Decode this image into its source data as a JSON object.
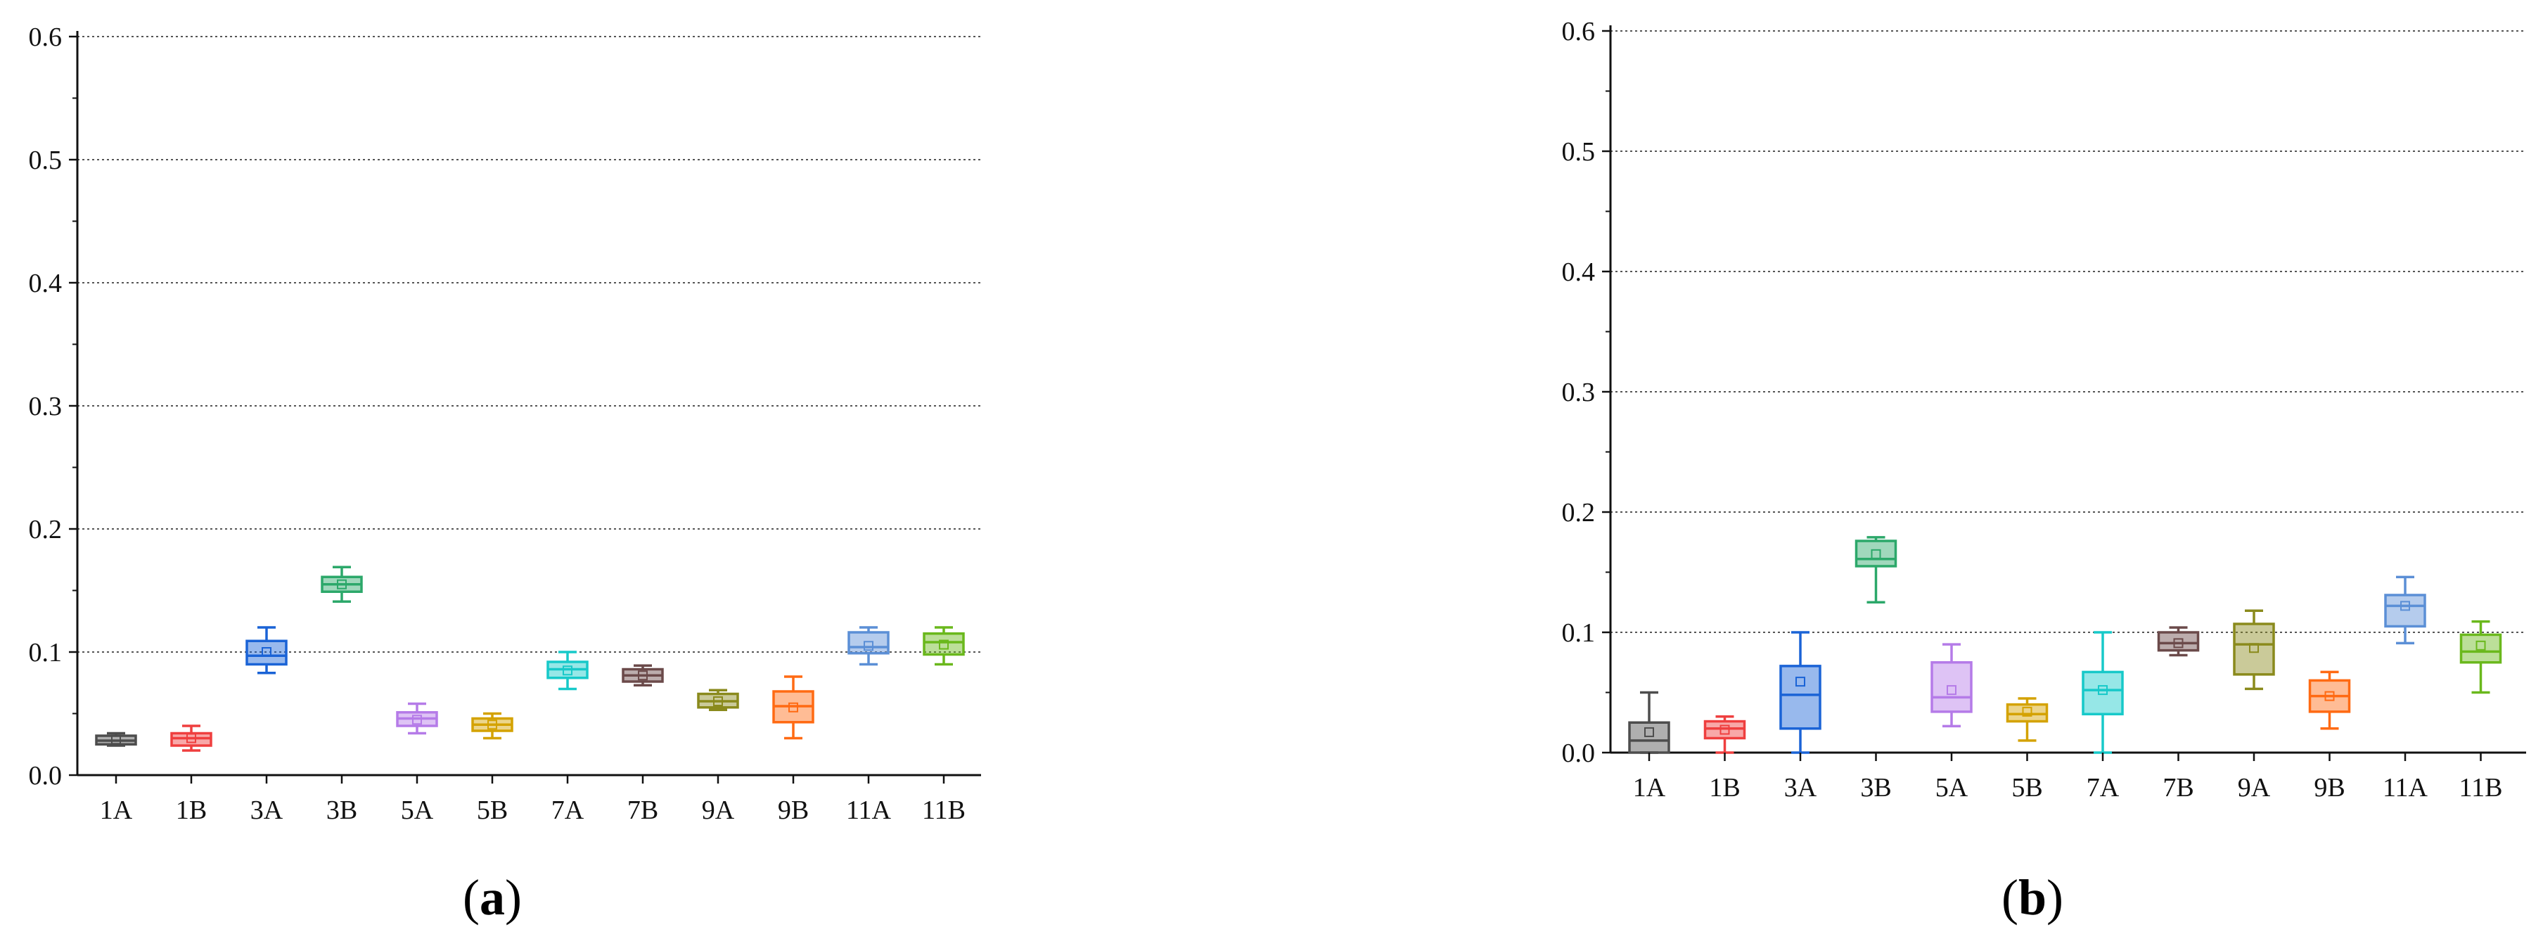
{
  "chart_data": [
    {
      "type": "box",
      "panel_label": "(a)",
      "panel_letter": "a",
      "categories": [
        "1A",
        "1B",
        "3A",
        "3B",
        "5A",
        "5B",
        "7A",
        "7B",
        "9A",
        "9B",
        "11A",
        "11B"
      ],
      "yticks": [
        "0.0",
        "0.1",
        "0.2",
        "0.3",
        "0.4",
        "0.5",
        "0.6"
      ],
      "ylim": [
        0,
        0.6
      ],
      "grid": "horizontal dotted",
      "series": [
        {
          "category": "1A",
          "min": 0.024,
          "q1": 0.025,
          "median": 0.028,
          "q3": 0.032,
          "max": 0.034,
          "mean": 0.029,
          "color": "#4d4d4d"
        },
        {
          "category": "1B",
          "min": 0.02,
          "q1": 0.024,
          "median": 0.03,
          "q3": 0.034,
          "max": 0.04,
          "mean": 0.03,
          "color": "#ef3f3f"
        },
        {
          "category": "3A",
          "min": 0.083,
          "q1": 0.09,
          "median": 0.097,
          "q3": 0.109,
          "max": 0.12,
          "mean": 0.1,
          "color": "#1a63d6"
        },
        {
          "category": "3B",
          "min": 0.141,
          "q1": 0.149,
          "median": 0.155,
          "q3": 0.161,
          "max": 0.169,
          "mean": 0.155,
          "color": "#2ca86a"
        },
        {
          "category": "5A",
          "min": 0.034,
          "q1": 0.04,
          "median": 0.046,
          "q3": 0.051,
          "max": 0.058,
          "mean": 0.045,
          "color": "#b57be8"
        },
        {
          "category": "5B",
          "min": 0.03,
          "q1": 0.036,
          "median": 0.041,
          "q3": 0.046,
          "max": 0.05,
          "mean": 0.041,
          "color": "#d4a200"
        },
        {
          "category": "7A",
          "min": 0.07,
          "q1": 0.079,
          "median": 0.086,
          "q3": 0.092,
          "max": 0.1,
          "mean": 0.085,
          "color": "#17c9c9"
        },
        {
          "category": "7B",
          "min": 0.073,
          "q1": 0.076,
          "median": 0.081,
          "q3": 0.086,
          "max": 0.089,
          "mean": 0.081,
          "color": "#6b4a4a"
        },
        {
          "category": "9A",
          "min": 0.053,
          "q1": 0.055,
          "median": 0.06,
          "q3": 0.066,
          "max": 0.069,
          "mean": 0.06,
          "color": "#8a8a1c"
        },
        {
          "category": "9B",
          "min": 0.03,
          "q1": 0.043,
          "median": 0.056,
          "q3": 0.068,
          "max": 0.08,
          "mean": 0.055,
          "color": "#ff6a13"
        },
        {
          "category": "11A",
          "min": 0.09,
          "q1": 0.099,
          "median": 0.104,
          "q3": 0.116,
          "max": 0.12,
          "mean": 0.105,
          "color": "#5b8fd6"
        },
        {
          "category": "11B",
          "min": 0.09,
          "q1": 0.098,
          "median": 0.108,
          "q3": 0.115,
          "max": 0.12,
          "mean": 0.106,
          "color": "#6ab81c"
        }
      ]
    },
    {
      "type": "box",
      "panel_label": "(b)",
      "panel_letter": "b",
      "categories": [
        "1A",
        "1B",
        "3A",
        "3B",
        "5A",
        "5B",
        "7A",
        "7B",
        "9A",
        "9B",
        "11A",
        "11B"
      ],
      "yticks": [
        "0.0",
        "0.1",
        "0.2",
        "0.3",
        "0.4",
        "0.5",
        "0.6"
      ],
      "ylim": [
        0,
        0.6
      ],
      "grid": "horizontal dotted",
      "series": [
        {
          "category": "1A",
          "min": 0.0,
          "q1": 0.0,
          "median": 0.01,
          "q3": 0.025,
          "max": 0.05,
          "mean": 0.017,
          "color": "#4d4d4d"
        },
        {
          "category": "1B",
          "min": 0.0,
          "q1": 0.012,
          "median": 0.02,
          "q3": 0.026,
          "max": 0.03,
          "mean": 0.019,
          "color": "#ef3f3f"
        },
        {
          "category": "3A",
          "min": 0.0,
          "q1": 0.02,
          "median": 0.048,
          "q3": 0.072,
          "max": 0.1,
          "mean": 0.059,
          "color": "#1a63d6"
        },
        {
          "category": "3B",
          "min": 0.125,
          "q1": 0.155,
          "median": 0.161,
          "q3": 0.176,
          "max": 0.179,
          "mean": 0.165,
          "color": "#2ca86a"
        },
        {
          "category": "5A",
          "min": 0.022,
          "q1": 0.034,
          "median": 0.046,
          "q3": 0.075,
          "max": 0.09,
          "mean": 0.052,
          "color": "#b57be8"
        },
        {
          "category": "5B",
          "min": 0.01,
          "q1": 0.026,
          "median": 0.032,
          "q3": 0.04,
          "max": 0.045,
          "mean": 0.034,
          "color": "#d4a200"
        },
        {
          "category": "7A",
          "min": 0.0,
          "q1": 0.032,
          "median": 0.052,
          "q3": 0.067,
          "max": 0.1,
          "mean": 0.052,
          "color": "#17c9c9"
        },
        {
          "category": "7B",
          "min": 0.081,
          "q1": 0.085,
          "median": 0.091,
          "q3": 0.1,
          "max": 0.104,
          "mean": 0.091,
          "color": "#6b4a4a"
        },
        {
          "category": "9A",
          "min": 0.053,
          "q1": 0.065,
          "median": 0.09,
          "q3": 0.107,
          "max": 0.118,
          "mean": 0.087,
          "color": "#8a8a1c"
        },
        {
          "category": "9B",
          "min": 0.02,
          "q1": 0.034,
          "median": 0.047,
          "q3": 0.06,
          "max": 0.067,
          "mean": 0.047,
          "color": "#ff6a13"
        },
        {
          "category": "11A",
          "min": 0.091,
          "q1": 0.105,
          "median": 0.122,
          "q3": 0.131,
          "max": 0.146,
          "mean": 0.122,
          "color": "#5b8fd6"
        },
        {
          "category": "11B",
          "min": 0.05,
          "q1": 0.075,
          "median": 0.084,
          "q3": 0.098,
          "max": 0.109,
          "mean": 0.089,
          "color": "#6ab81c"
        }
      ]
    }
  ]
}
